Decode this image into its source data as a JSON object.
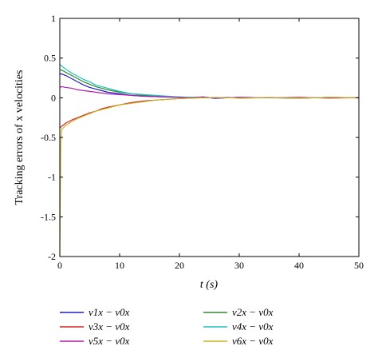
{
  "chart_data": {
    "type": "line",
    "xlabel": "t (s)",
    "ylabel": "Tracking errors of x velocities",
    "xlim": [
      0,
      50
    ],
    "ylim": [
      -2,
      1
    ],
    "xticks": [
      "0",
      "10",
      "20",
      "30",
      "40",
      "50"
    ],
    "yticks": [
      "1",
      "0.5",
      "0",
      "-0.5",
      "-1",
      "-1.5",
      "-2"
    ],
    "grid": false,
    "legend_position": "below",
    "series": [
      {
        "name": "v1x − v0x",
        "color": "#1f1fbf",
        "x": [
          0,
          0.3,
          1,
          2,
          3,
          4,
          5,
          6,
          7,
          8,
          10,
          12,
          14,
          16,
          18,
          20,
          22,
          24,
          26,
          28,
          30,
          35,
          40,
          45,
          50
        ],
        "y": [
          0.3,
          0.3,
          0.28,
          0.24,
          0.2,
          0.16,
          0.13,
          0.11,
          0.09,
          0.07,
          0.05,
          0.03,
          0.02,
          0.015,
          0.01,
          0.005,
          0.0,
          0.01,
          -0.01,
          0.0,
          0.005,
          0.0,
          -0.005,
          0.005,
          0.0
        ]
      },
      {
        "name": "v2x − v0x",
        "color": "#2e8b2e",
        "x": [
          0,
          0.3,
          1,
          2,
          3,
          4,
          5,
          6,
          7,
          8,
          10,
          12,
          14,
          16,
          18,
          20,
          22,
          24,
          26,
          28,
          30,
          35,
          40,
          45,
          50
        ],
        "y": [
          0.35,
          0.35,
          0.32,
          0.28,
          0.24,
          0.2,
          0.17,
          0.14,
          0.12,
          0.1,
          0.07,
          0.05,
          0.03,
          0.02,
          0.015,
          0.01,
          0.005,
          0.01,
          -0.005,
          0.0,
          0.005,
          0.0,
          -0.005,
          0.005,
          0.0
        ]
      },
      {
        "name": "v3x − v0x",
        "color": "#d62020",
        "x": [
          0,
          0.3,
          1,
          2,
          3,
          4,
          5,
          6,
          7,
          8,
          10,
          12,
          14,
          16,
          18,
          20,
          22,
          24,
          26,
          28,
          30,
          35,
          40,
          45,
          50
        ],
        "y": [
          -0.38,
          -0.36,
          -0.32,
          -0.28,
          -0.25,
          -0.22,
          -0.19,
          -0.17,
          -0.14,
          -0.12,
          -0.09,
          -0.06,
          -0.04,
          -0.03,
          -0.02,
          -0.01,
          -0.005,
          0.0,
          0.0,
          0.005,
          -0.005,
          0.0,
          0.005,
          -0.005,
          0.0
        ]
      },
      {
        "name": "v4x − v0x",
        "color": "#1fbfbf",
        "x": [
          0,
          0.3,
          1,
          2,
          3,
          4,
          5,
          6,
          7,
          8,
          10,
          12,
          14,
          16,
          18,
          20,
          22,
          24,
          26,
          28,
          30,
          35,
          40,
          45,
          50
        ],
        "y": [
          0.42,
          0.4,
          0.36,
          0.31,
          0.27,
          0.23,
          0.2,
          0.16,
          0.14,
          0.12,
          0.08,
          0.05,
          0.04,
          0.03,
          0.02,
          0.01,
          0.005,
          0.01,
          -0.005,
          0.0,
          0.005,
          0.0,
          -0.005,
          0.005,
          0.0
        ]
      },
      {
        "name": "v5x − v0x",
        "color": "#b01fb0",
        "x": [
          0,
          0.3,
          1,
          2,
          3,
          4,
          5,
          6,
          7,
          8,
          10,
          12,
          14,
          16,
          18,
          20,
          22,
          24,
          26,
          28,
          30,
          35,
          40,
          45,
          50
        ],
        "y": [
          0.13,
          0.14,
          0.13,
          0.12,
          0.1,
          0.09,
          0.08,
          0.07,
          0.06,
          0.05,
          0.04,
          0.03,
          0.02,
          0.015,
          0.01,
          0.005,
          0.0,
          0.01,
          -0.005,
          0.0,
          0.005,
          0.0,
          -0.005,
          0.005,
          0.0
        ]
      },
      {
        "name": "v6x − v0x",
        "color": "#c8b428",
        "x": [
          0,
          0.15,
          0.3,
          1,
          2,
          3,
          4,
          5,
          6,
          7,
          8,
          10,
          12,
          14,
          16,
          18,
          20,
          22,
          24,
          26,
          28,
          30,
          35,
          40,
          45,
          50
        ],
        "y": [
          -2.0,
          -0.6,
          -0.4,
          -0.35,
          -0.3,
          -0.26,
          -0.23,
          -0.2,
          -0.17,
          -0.15,
          -0.13,
          -0.09,
          -0.07,
          -0.05,
          -0.03,
          -0.02,
          -0.01,
          -0.005,
          0.0,
          0.005,
          0.0,
          -0.005,
          0.005,
          -0.005,
          0.005,
          0.0
        ]
      }
    ]
  }
}
